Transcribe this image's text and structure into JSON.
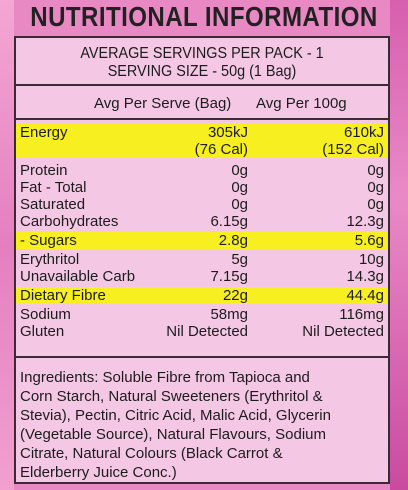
{
  "title": "NUTRITIONAL INFORMATION",
  "servings_line": "AVERAGE SERVINGS PER PACK - 1",
  "serving_size_line": "SERVING SIZE - 50g (1 Bag)",
  "column_headers": {
    "per_serve": "Avg Per Serve (Bag)",
    "per_100g": "Avg Per 100g"
  },
  "rows": [
    {
      "label": "Energy",
      "per_serve": "305kJ",
      "per_100g": "610kJ"
    },
    {
      "label": "",
      "per_serve": "(76 Cal)",
      "per_100g": "(152 Cal)"
    },
    {
      "label": "Protein",
      "per_serve": "0g",
      "per_100g": "0g"
    },
    {
      "label": "Fat - Total",
      "per_serve": "0g",
      "per_100g": "0g"
    },
    {
      "label": "Saturated",
      "per_serve": "0g",
      "per_100g": "0g"
    },
    {
      "label": "Carbohydrates",
      "per_serve": "6.15g",
      "per_100g": "12.3g"
    },
    {
      "label": "- Sugars",
      "per_serve": "2.8g",
      "per_100g": "5.6g"
    },
    {
      "label": "Erythritol",
      "per_serve": "5g",
      "per_100g": "10g"
    },
    {
      "label": "Unavailable Carb",
      "per_serve": "7.15g",
      "per_100g": "14.3g"
    },
    {
      "label": "Dietary Fibre",
      "per_serve": "22g",
      "per_100g": "44.4g"
    },
    {
      "label": "Sodium",
      "per_serve": "58mg",
      "per_100g": "116mg"
    },
    {
      "label": "Gluten",
      "per_serve": "Nil Detected",
      "per_100g": "Nil Detected"
    }
  ],
  "ingredients": "Ingredients: Soluble Fibre from Tapioca and\nCorn Starch, Natural Sweeteners (Erythritol &\nStevia), Pectin, Citric Acid, Malic Acid, Glycerin\n(Vegetable Source), Natural Flavours, Sodium\nCitrate, Natural Colours (Black Carrot &\nElderberry Juice Conc.)",
  "colors": {
    "background": "#e889c4",
    "panel": "#f4c8e4",
    "highlight": "#f7ef1f"
  }
}
